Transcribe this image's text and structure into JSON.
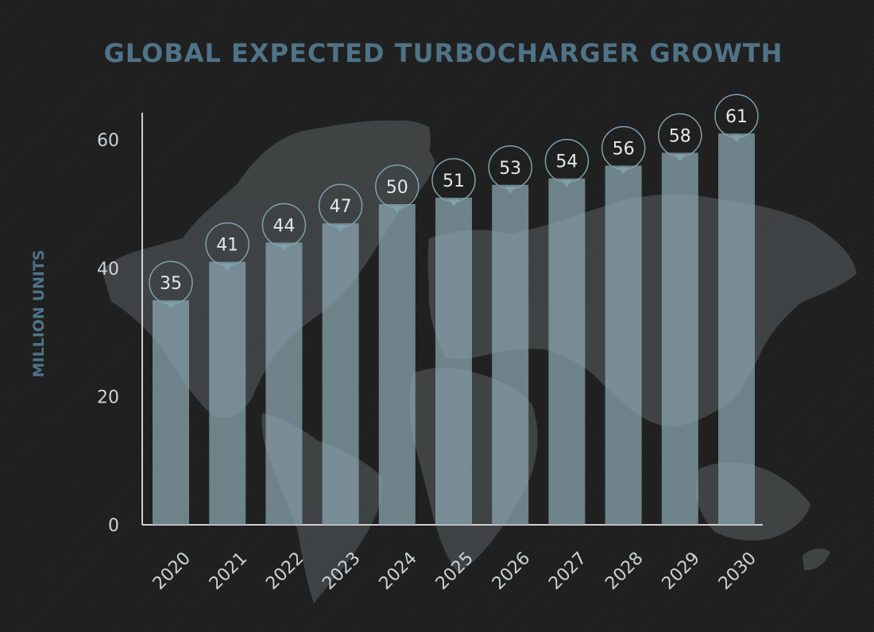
{
  "chart_data": {
    "type": "bar",
    "title": "GLOBAL EXPECTED TURBOCHARGER GROWTH",
    "xlabel": "",
    "ylabel": "MILLION UNITS",
    "categories": [
      "2020",
      "2021",
      "2022",
      "2023",
      "2024",
      "2025",
      "2026",
      "2027",
      "2028",
      "2029",
      "2030"
    ],
    "values": [
      35,
      41,
      44,
      47,
      50,
      51,
      53,
      54,
      56,
      58,
      61
    ],
    "ylim": [
      0,
      64
    ],
    "yticks": [
      0,
      20,
      40,
      60
    ],
    "data_labels": true,
    "grid": false,
    "legend": "none",
    "background": "world map silhouette",
    "colors": {
      "background": "#1f1f1f",
      "title": "#4f7387",
      "bar": "#8ea9b4",
      "label_bubble": "#7fa0ad",
      "axis": "#d0d0d0",
      "tick_text": "#cdd3d6"
    }
  }
}
